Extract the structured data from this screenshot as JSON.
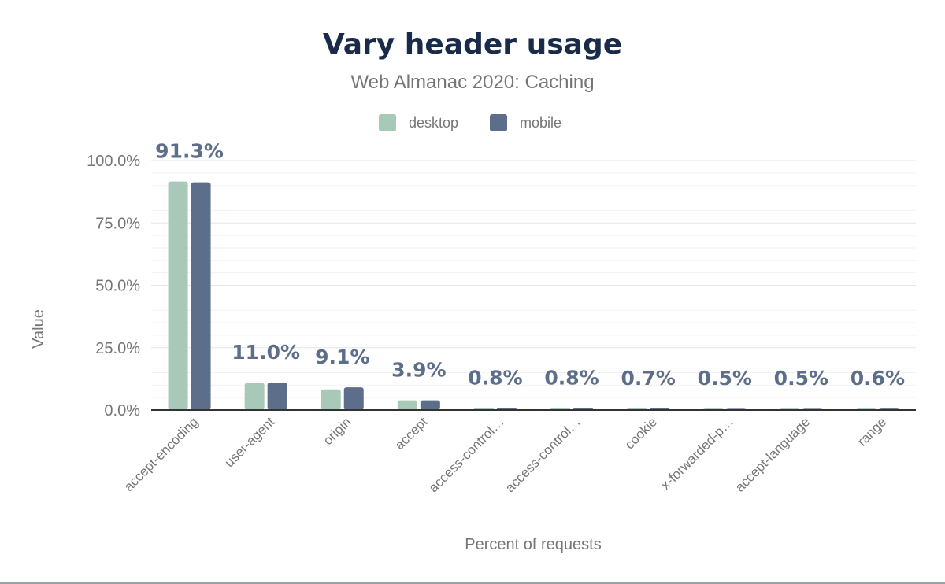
{
  "chart_data": {
    "type": "bar",
    "title": "Vary header usage",
    "subtitle": "Web Almanac 2020: Caching",
    "xlabel": "Percent of requests",
    "ylabel": "Value",
    "ylim": [
      0,
      100
    ],
    "y_ticks": [
      "0.0%",
      "25.0%",
      "50.0%",
      "75.0%",
      "100.0%"
    ],
    "y_tick_values": [
      0,
      25,
      50,
      75,
      100
    ],
    "categories": [
      "accept-encoding",
      "user-agent",
      "origin",
      "accept",
      "access-control…",
      "access-control…",
      "cookie",
      "x-forwarded-p…",
      "accept-language",
      "range"
    ],
    "series": [
      {
        "name": "desktop",
        "color": "#a8c9b8",
        "values": [
          91.6,
          10.9,
          8.3,
          3.9,
          0.8,
          0.8,
          0.7,
          0.6,
          0.6,
          0.6
        ]
      },
      {
        "name": "mobile",
        "color": "#5d6e8a",
        "values": [
          91.3,
          11.0,
          9.1,
          3.9,
          0.8,
          0.8,
          0.7,
          0.5,
          0.5,
          0.6
        ]
      }
    ],
    "data_labels": [
      "91.3%",
      "11.0%",
      "9.1%",
      "3.9%",
      "0.8%",
      "0.8%",
      "0.7%",
      "0.5%",
      "0.5%",
      "0.6%"
    ],
    "legend_position": "top-center",
    "grid": true
  },
  "colors": {
    "title": "#1a2b4a",
    "subtitle": "#757575",
    "axis_text": "#757575",
    "data_label": "#5d6e8a",
    "grid": "#e6e6e6",
    "baseline": "#333333"
  }
}
